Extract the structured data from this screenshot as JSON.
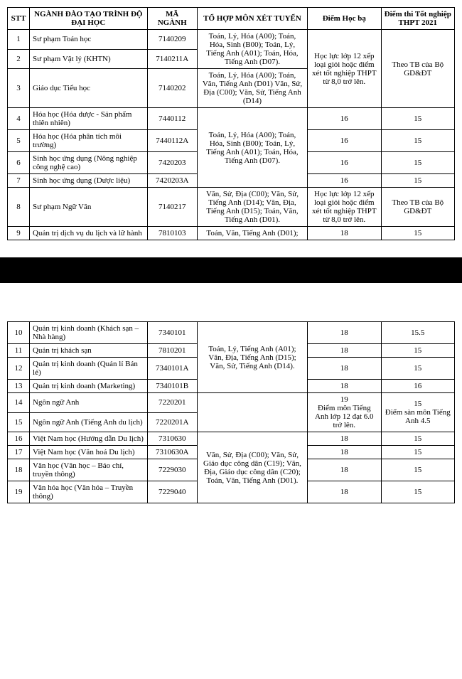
{
  "headers": {
    "stt": "STT",
    "name": "NGÀNH ĐÀO TẠO TRÌNH ĐỘ ĐẠI HỌC",
    "code": "MÃ NGÀNH",
    "combo": "TỔ HỢP MÔN XÉT TUYỂN",
    "hocba": "Điểm Học bạ",
    "thpt": "Điểm thi Tốt nghiệp THPT 2021"
  },
  "table1": {
    "rows": {
      "r1": {
        "stt": "1",
        "name": "Sư phạm Toán học",
        "code": "7140209"
      },
      "r2": {
        "stt": "2",
        "name": "Sư phạm Vật lý (KHTN)",
        "code": "7140211A"
      },
      "r3": {
        "stt": "3",
        "name": "Giáo dục Tiểu học",
        "code": "7140202"
      },
      "r4": {
        "stt": "4",
        "name": "Hóa học (Hóa dược - Sản phẩm thiên nhiên)",
        "code": "7440112",
        "hocba": "16",
        "thpt": "15"
      },
      "r5": {
        "stt": "5",
        "name": "Hóa học (Hóa phân tích môi trường)",
        "code": "7440112A",
        "hocba": "16",
        "thpt": "15"
      },
      "r6": {
        "stt": "6",
        "name": "Sinh học ứng dụng (Nông nghiệp công nghệ cao)",
        "code": "7420203",
        "hocba": "16",
        "thpt": "15"
      },
      "r7": {
        "stt": "7",
        "name": "Sinh học ứng dụng (Dược liệu)",
        "code": "7420203A",
        "hocba": "16",
        "thpt": "15"
      },
      "r8": {
        "stt": "8",
        "name": "Sư phạm Ngữ Văn",
        "code": "7140217"
      },
      "r9": {
        "stt": "9",
        "name": "Quản trị dịch vụ du lịch và lữ hành",
        "code": "7810103",
        "hocba": "18",
        "thpt": "15"
      }
    },
    "combos": {
      "c12": "Toán, Lý, Hóa (A00); Toán, Hóa, Sinh (B00); Toán, Lý, Tiếng Anh (A01); Toán, Hóa, Tiếng Anh (D07).",
      "c3": "Toán, Lý, Hóa (A00); Toán, Văn, Tiếng Anh (D01) Văn, Sử, Địa (C00); Văn, Sử, Tiếng Anh (D14)",
      "c47": "Toán, Lý, Hóa (A00); Toán, Hóa, Sinh (B00); Toán, Lý, Tiếng Anh (A01); Toán, Hóa, Tiếng Anh (D07).",
      "c8": "Văn, Sử, Địa (C00); Văn, Sử, Tiếng Anh (D14); Văn, Địa, Tiếng Anh (D15); Toán, Văn, Tiếng Anh (D01).",
      "c9": "Toán, Văn, Tiếng Anh (D01);"
    },
    "hocba_span123": "Học lực lớp 12 xếp loại giỏi hoặc điểm xét tốt nghiệp THPT từ 8,0 trở lên.",
    "thpt_span123": "Theo TB của Bộ GD&ĐT",
    "hocba_span8": "Học lực lớp 12 xếp loại giỏi hoặc điểm xét tốt nghiệp THPT từ 8,0 trở lên.",
    "thpt_span8": "Theo TB của Bộ GD&ĐT"
  },
  "table2": {
    "rows": {
      "r10": {
        "stt": "10",
        "name": "Quản trị kinh doanh (Khách sạn – Nhà hàng)",
        "code": "7340101",
        "hocba": "18",
        "thpt": "15.5"
      },
      "r11": {
        "stt": "11",
        "name": "Quản trị khách sạn",
        "code": "7810201",
        "hocba": "18",
        "thpt": "15"
      },
      "r12": {
        "stt": "12",
        "name": "Quản trị kinh doanh (Quản lí Bán lẻ)",
        "code": "7340101A",
        "hocba": "18",
        "thpt": "15"
      },
      "r13": {
        "stt": "13",
        "name": "Quản trị kinh doanh (Marketing)",
        "code": "7340101B",
        "hocba": "18",
        "thpt": "16"
      },
      "r14": {
        "stt": "14",
        "name": "Ngôn ngữ Anh",
        "code": "7220201"
      },
      "r15": {
        "stt": "15",
        "name": "Ngôn ngữ Anh (Tiếng Anh du lịch)",
        "code": "7220201A"
      },
      "r16": {
        "stt": "16",
        "name": "Việt Nam học (Hướng dẫn Du lịch)",
        "code": "7310630",
        "hocba": "18",
        "thpt": "15"
      },
      "r17": {
        "stt": "17",
        "name": "Việt Nam học (Văn hoá Du lịch)",
        "code": "7310630A",
        "hocba": "18",
        "thpt": "15"
      },
      "r18": {
        "stt": "18",
        "name": "Văn học (Văn học – Báo chí, truyền thông)",
        "code": "7229030",
        "hocba": "18",
        "thpt": "15"
      },
      "r19": {
        "stt": "19",
        "name": "Văn hóa học (Văn hóa – Truyền thông)",
        "code": "7229040",
        "hocba": "18",
        "thpt": "15"
      }
    },
    "combos": {
      "c10_13": "Toán, Lý, Tiếng Anh (A01); Văn, Địa, Tiếng Anh (D15); Văn, Sử, Tiếng Anh (D14).",
      "c14_15": "",
      "c16_19": "Văn, Sử, Địa (C00); Văn, Sử, Giáo dục công dân (C19); Văn, Địa, Giáo dục công dân (C20); Toán, Văn, Tiếng Anh (D01)."
    },
    "hocba_1415_line1": "19",
    "hocba_1415_line2": "Điểm môn Tiếng Anh lớp 12 đạt 6.0 trở lên.",
    "thpt_1415_line1": "15",
    "thpt_1415_line2": "Điểm sàn môn Tiếng Anh 4.5"
  }
}
